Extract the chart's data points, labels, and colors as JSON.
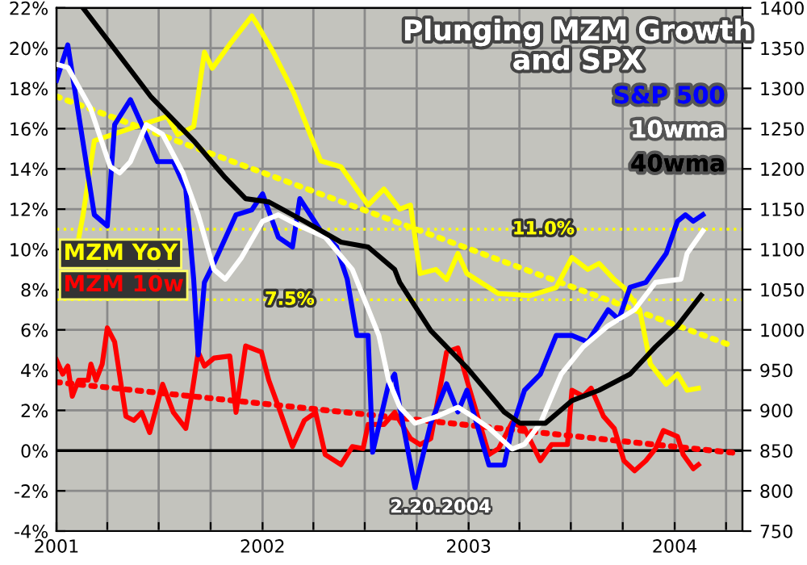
{
  "chart_data": {
    "type": "line",
    "title": "Plunging MZM Growth\nand SPX",
    "xlim": [
      "2001-01-01",
      "2004-04-30"
    ],
    "xticks": [
      {
        "value": "2001-01-01",
        "label": "2001"
      },
      {
        "value": "2001-04-01",
        "label": null
      },
      {
        "value": "2001-07-01",
        "label": null
      },
      {
        "value": "2001-10-01",
        "label": null
      },
      {
        "value": "2002-01-01",
        "label": "2002"
      },
      {
        "value": "2002-04-01",
        "label": null
      },
      {
        "value": "2002-07-01",
        "label": null
      },
      {
        "value": "2002-10-01",
        "label": null
      },
      {
        "value": "2003-01-01",
        "label": "2003"
      },
      {
        "value": "2003-04-01",
        "label": null
      },
      {
        "value": "2003-07-01",
        "label": null
      },
      {
        "value": "2003-10-01",
        "label": null
      },
      {
        "value": "2004-01-01",
        "label": "2004"
      },
      {
        "value": "2004-04-01",
        "label": null
      }
    ],
    "ylim": [
      -4,
      22
    ],
    "yticks": [
      {
        "value": -4,
        "label": "-4%"
      },
      {
        "value": -2,
        "label": "-2%"
      },
      {
        "value": 0,
        "label": "0%"
      },
      {
        "value": 2,
        "label": "2%"
      },
      {
        "value": 4,
        "label": "4%"
      },
      {
        "value": 6,
        "label": "6%"
      },
      {
        "value": 8,
        "label": "8%"
      },
      {
        "value": 10,
        "label": "10%"
      },
      {
        "value": 12,
        "label": "12%"
      },
      {
        "value": 14,
        "label": "14%"
      },
      {
        "value": 16,
        "label": "16%"
      },
      {
        "value": 18,
        "label": "18%"
      },
      {
        "value": 20,
        "label": "20%"
      },
      {
        "value": 22,
        "label": "22%"
      }
    ],
    "y2lim": [
      750,
      1400
    ],
    "y2ticks": [
      750,
      800,
      850,
      900,
      950,
      1000,
      1050,
      1100,
      1150,
      1200,
      1250,
      1300,
      1350,
      1400
    ],
    "grid": true,
    "ref_lines": [
      {
        "axis": "y",
        "value": 11.0,
        "label": "11.0%",
        "color": "#ffff00",
        "line_style": "dotted"
      },
      {
        "axis": "y",
        "value": 7.5,
        "label": "7.5%",
        "color": "#ffff00",
        "line_style": "dotted"
      },
      {
        "axis": "y",
        "value": 0,
        "label": null,
        "color": "#000000",
        "line_style": "solid"
      }
    ],
    "annotations": [
      "2.20.2004"
    ],
    "series": [
      {
        "name": "MZM YoY",
        "color": "#ffff00",
        "axis": "y",
        "x": [
          "2001-02-09",
          "2001-02-17",
          "2001-03-09",
          "2001-06-01",
          "2001-07-16",
          "2001-08-04",
          "2001-09-01",
          "2001-09-20",
          "2001-10-04",
          "2001-11-04",
          "2001-12-13",
          "2001-12-22",
          "2002-01-20",
          "2002-02-25",
          "2002-04-14",
          "2002-05-20",
          "2002-07-07",
          "2002-08-04",
          "2002-09-01",
          "2002-09-20",
          "2002-10-07",
          "2002-11-04",
          "2002-11-23",
          "2002-12-13",
          "2002-12-29",
          "2003-02-23",
          "2003-04-19",
          "2003-06-05",
          "2003-07-03",
          "2003-07-31",
          "2003-08-20",
          "2003-09-16",
          "2003-10-03",
          "2003-10-31",
          "2003-11-19",
          "2003-12-17",
          "2004-01-06",
          "2004-01-23",
          "2004-02-12"
        ],
        "values": [
          10.5,
          11.7,
          15.4,
          16.2,
          16.6,
          15.7,
          16.1,
          19.8,
          19.0,
          20.2,
          21.6,
          21.2,
          19.8,
          17.8,
          14.4,
          14.1,
          12.2,
          13.0,
          12.0,
          12.2,
          8.8,
          9.0,
          8.5,
          9.8,
          8.8,
          7.8,
          7.7,
          8.1,
          9.6,
          9.0,
          9.3,
          8.5,
          8.1,
          7.0,
          4.3,
          3.3,
          3.8,
          3.0,
          3.1
        ]
      },
      {
        "name": "MZM 10w",
        "color": "#ff0000",
        "axis": "y",
        "x": [
          "2001-01-01",
          "2001-01-12",
          "2001-01-21",
          "2001-01-29",
          "2001-02-09",
          "2001-02-26",
          "2001-03-03",
          "2001-03-12",
          "2001-03-23",
          "2001-04-01",
          "2001-04-14",
          "2001-05-04",
          "2001-05-18",
          "2001-06-01",
          "2001-06-15",
          "2001-07-08",
          "2001-07-27",
          "2001-08-18",
          "2001-08-27",
          "2001-09-09",
          "2001-09-20",
          "2001-10-07",
          "2001-11-04",
          "2001-11-15",
          "2001-12-02",
          "2001-12-30",
          "2002-01-12",
          "2002-01-29",
          "2002-02-23",
          "2002-03-16",
          "2002-04-05",
          "2002-04-22",
          "2002-05-20",
          "2002-06-09",
          "2002-06-28",
          "2002-07-07",
          "2002-08-04",
          "2002-08-23",
          "2002-09-20",
          "2002-10-07",
          "2002-10-26",
          "2002-11-23",
          "2002-12-13",
          "2002-12-29",
          "2003-01-17",
          "2003-02-06",
          "2003-02-23",
          "2003-03-19",
          "2003-04-10",
          "2003-05-08",
          "2003-05-28",
          "2003-06-25",
          "2003-07-03",
          "2003-07-23",
          "2003-08-06",
          "2003-08-28",
          "2003-09-16",
          "2003-10-03",
          "2003-10-22",
          "2003-11-11",
          "2003-11-28",
          "2003-12-12",
          "2004-01-06",
          "2004-01-16",
          "2004-02-03",
          "2004-02-12"
        ],
        "values": [
          4.5,
          3.8,
          4.2,
          2.7,
          3.5,
          3.5,
          4.3,
          3.5,
          4.3,
          6.1,
          5.4,
          1.7,
          1.5,
          1.9,
          0.9,
          3.3,
          1.9,
          1.1,
          2.5,
          4.9,
          4.2,
          4.6,
          4.7,
          1.9,
          5.2,
          4.9,
          3.5,
          2.2,
          0.2,
          1.5,
          1.9,
          -0.2,
          -0.7,
          0.2,
          0.1,
          1.3,
          1.3,
          1.9,
          0.6,
          0.3,
          0.6,
          4.9,
          5.1,
          3.5,
          1.7,
          -0.2,
          0.1,
          1.4,
          1.1,
          -0.5,
          0.3,
          0.3,
          3.0,
          2.7,
          3.1,
          1.7,
          1.1,
          -0.5,
          -1.0,
          -0.5,
          0.1,
          1.0,
          0.7,
          -0.2,
          -0.9,
          -0.7
        ]
      },
      {
        "type": "line",
        "color": "#ffff00",
        "axis": "y",
        "line_style": "dotted",
        "x": [
          "2001-01-01",
          "2004-04-12"
        ],
        "values": [
          17.6,
          5.2
        ]
      },
      {
        "type": "line",
        "color": "#ff0000",
        "axis": "y",
        "line_style": "dotted",
        "x": [
          "2001-01-01",
          "2004-04-12"
        ],
        "values": [
          3.4,
          -0.1
        ]
      },
      {
        "name": "S&P 500",
        "color": "#0000ff",
        "axis": "y2",
        "x": [
          "2001-01-01",
          "2001-01-21",
          "2001-03-09",
          "2001-04-01",
          "2001-04-14",
          "2001-05-12",
          "2001-06-01",
          "2001-06-29",
          "2001-07-27",
          "2001-08-18",
          "2001-09-01",
          "2001-09-09",
          "2001-09-20",
          "2001-10-07",
          "2001-11-15",
          "2001-12-13",
          "2002-01-01",
          "2002-01-29",
          "2002-02-23",
          "2002-03-08",
          "2002-04-14",
          "2002-05-12",
          "2002-05-31",
          "2002-06-17",
          "2002-07-07",
          "2002-07-15",
          "2002-08-12",
          "2002-08-23",
          "2002-09-01",
          "2002-09-28",
          "2002-10-26",
          "2002-11-23",
          "2002-12-13",
          "2002-12-29",
          "2003-02-06",
          "2003-03-05",
          "2003-03-19",
          "2003-04-10",
          "2003-05-08",
          "2003-06-05",
          "2003-07-03",
          "2003-07-31",
          "2003-09-05",
          "2003-09-24",
          "2003-10-14",
          "2003-11-11",
          "2003-12-17",
          "2004-01-06",
          "2004-01-20",
          "2004-02-03",
          "2004-02-20"
        ],
        "values": [
          1310,
          1354,
          1143,
          1129,
          1255,
          1286,
          1255,
          1209,
          1209,
          1175,
          1063,
          969,
          1059,
          1083,
          1143,
          1149,
          1169,
          1115,
          1103,
          1163,
          1123,
          1103,
          1063,
          993,
          993,
          848,
          932,
          945,
          904,
          804,
          884,
          933,
          898,
          925,
          832,
          832,
          878,
          925,
          945,
          993,
          993,
          985,
          1025,
          1013,
          1053,
          1059,
          1095,
          1135,
          1143,
          1135,
          1143
        ]
      },
      {
        "name": "10wma",
        "color": "#ffffff",
        "axis": "y2",
        "x": [
          "2001-01-01",
          "2001-01-21",
          "2001-03-02",
          "2001-04-06",
          "2001-04-23",
          "2001-05-12",
          "2001-06-09",
          "2001-07-08",
          "2001-08-13",
          "2001-09-09",
          "2001-10-07",
          "2001-10-27",
          "2001-11-24",
          "2002-01-01",
          "2002-01-29",
          "2002-03-08",
          "2002-04-22",
          "2002-06-09",
          "2002-07-26",
          "2002-08-12",
          "2002-09-01",
          "2002-09-28",
          "2002-11-04",
          "2002-12-13",
          "2003-01-09",
          "2003-02-06",
          "2003-03-19",
          "2003-04-10",
          "2003-05-08",
          "2003-06-14",
          "2003-07-23",
          "2003-09-05",
          "2003-10-22",
          "2003-11-28",
          "2004-01-12",
          "2004-01-23",
          "2004-02-20"
        ],
        "values": [
          1330,
          1326,
          1276,
          1203,
          1195,
          1209,
          1255,
          1243,
          1195,
          1143,
          1075,
          1063,
          1089,
          1135,
          1143,
          1129,
          1115,
          1075,
          993,
          938,
          904,
          884,
          892,
          904,
          892,
          878,
          852,
          858,
          884,
          945,
          979,
          1005,
          1025,
          1059,
          1063,
          1095,
          1123
        ]
      },
      {
        "name": "40wma",
        "color": "#000000",
        "axis": "y2",
        "x": [
          "2001-02-17",
          "2001-04-06",
          "2001-06-18",
          "2001-09-01",
          "2001-10-27",
          "2001-12-02",
          "2002-01-12",
          "2002-03-16",
          "2002-05-20",
          "2002-07-07",
          "2002-08-23",
          "2002-09-01",
          "2002-10-26",
          "2002-12-29",
          "2003-03-05",
          "2003-04-02",
          "2003-05-17",
          "2003-07-03",
          "2003-08-20",
          "2003-10-14",
          "2003-11-28",
          "2004-01-06",
          "2004-02-17"
        ],
        "values": [
          1400,
          1356,
          1289,
          1235,
          1189,
          1163,
          1159,
          1135,
          1109,
          1103,
          1075,
          1059,
          999,
          953,
          898,
          884,
          884,
          912,
          925,
          945,
          979,
          1005,
          1043
        ]
      }
    ]
  }
}
